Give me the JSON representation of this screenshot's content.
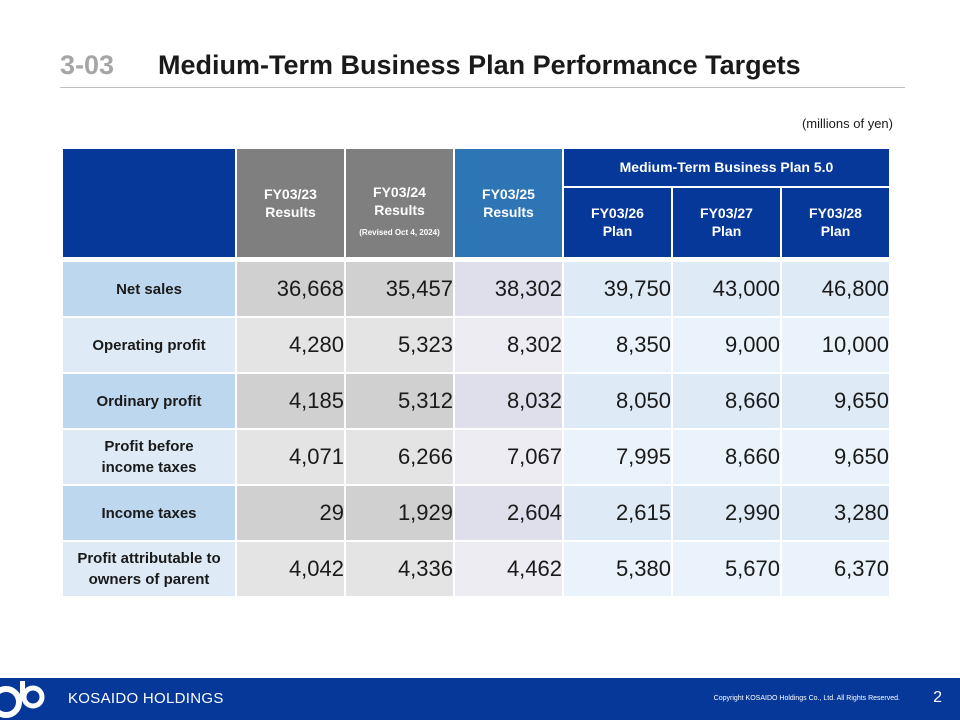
{
  "header": {
    "section_number": "3-03",
    "title": "Medium-Term Business Plan Performance Targets",
    "unit_note": "(millions of yen)"
  },
  "table": {
    "group_header": "Medium-Term Business Plan 5.0",
    "columns": [
      {
        "line1": "FY03/23",
        "line2": "Results",
        "note": ""
      },
      {
        "line1": "FY03/24",
        "line2": "Results",
        "note": "(Revised Oct 4, 2024)"
      },
      {
        "line1": "FY03/25",
        "line2": "Results",
        "note": ""
      },
      {
        "line1": "FY03/26",
        "line2": "Plan",
        "note": ""
      },
      {
        "line1": "FY03/27",
        "line2": "Plan",
        "note": ""
      },
      {
        "line1": "FY03/28",
        "line2": "Plan",
        "note": ""
      }
    ],
    "rows": [
      {
        "label_line1": "Net sales",
        "label_line2": "",
        "values": [
          "36,668",
          "35,457",
          "38,302",
          "39,750",
          "43,000",
          "46,800"
        ]
      },
      {
        "label_line1": "Operating profit",
        "label_line2": "",
        "values": [
          "4,280",
          "5,323",
          "8,302",
          "8,350",
          "9,000",
          "10,000"
        ]
      },
      {
        "label_line1": "Ordinary profit",
        "label_line2": "",
        "values": [
          "4,185",
          "5,312",
          "8,032",
          "8,050",
          "8,660",
          "9,650"
        ]
      },
      {
        "label_line1": "Profit before",
        "label_line2": "income taxes",
        "values": [
          "4,071",
          "6,266",
          "7,067",
          "7,995",
          "8,660",
          "9,650"
        ]
      },
      {
        "label_line1": "Income taxes",
        "label_line2": "",
        "values": [
          "29",
          "1,929",
          "2,604",
          "2,615",
          "2,990",
          "3,280"
        ]
      },
      {
        "label_line1": "Profit attributable to",
        "label_line2": "owners of parent",
        "values": [
          "4,042",
          "4,336",
          "4,462",
          "5,380",
          "5,670",
          "6,370"
        ]
      }
    ]
  },
  "footer": {
    "company": "KOSAIDO HOLDINGS",
    "copyright": "Copyright  KOSAIDO Holdings Co., Ltd. All Rights Reserved.",
    "page_number": "2"
  },
  "colors": {
    "navy": "#06389a",
    "mid_blue": "#2e75b6",
    "gray_header": "#7f7f7f",
    "row_dark": "#bdd7ee",
    "row_light": "#deebf7"
  }
}
